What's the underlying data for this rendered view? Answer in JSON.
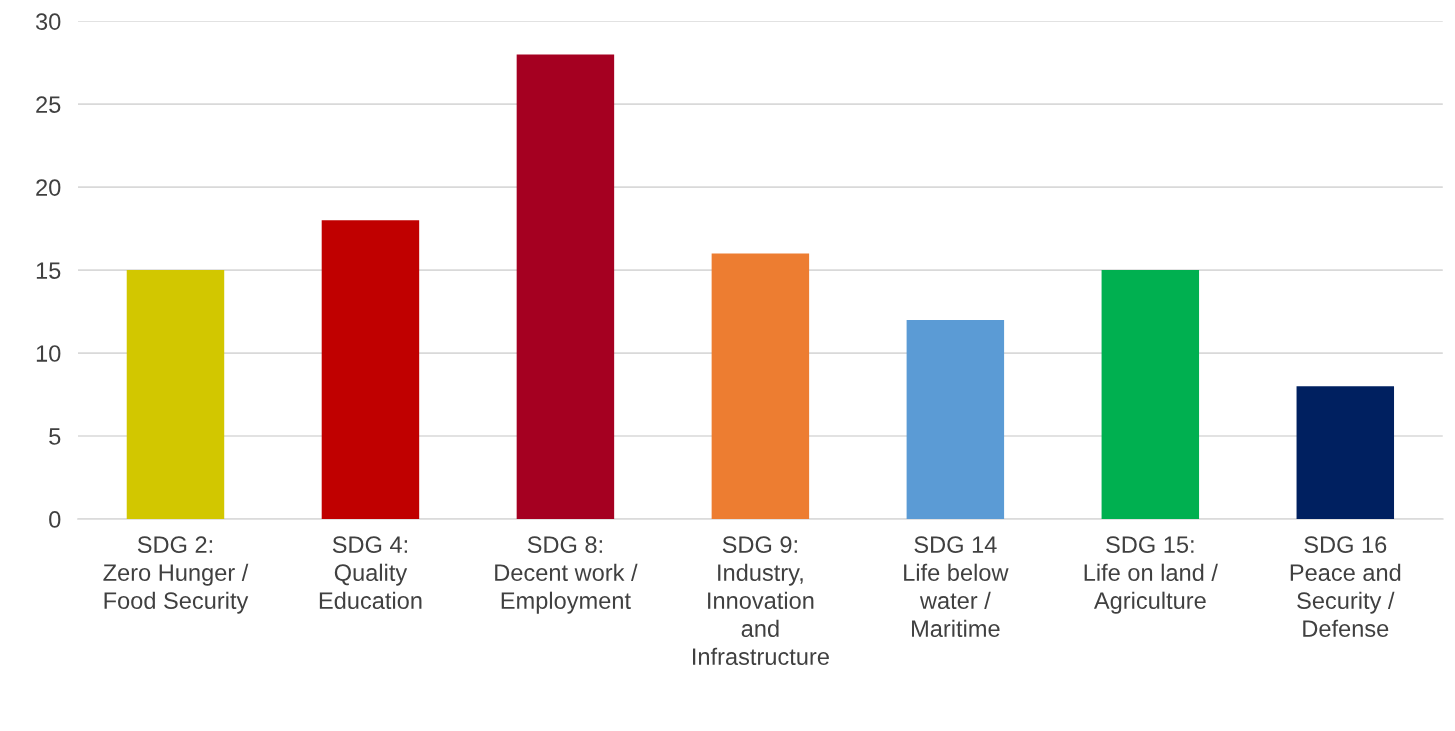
{
  "chart_data": {
    "type": "bar",
    "categories": [
      "SDG 2:\nZero Hunger /\nFood Security",
      "SDG 4:\nQuality\nEducation",
      "SDG 8:\nDecent work /\nEmployment",
      "SDG 9:\nIndustry,\nInnovation\nand\nInfrastructure",
      "SDG 14\nLife below\nwater /\nMaritime",
      "SDG 15:\nLife on land /\nAgriculture",
      "SDG 16\nPeace and\nSecurity /\nDefense"
    ],
    "values": [
      15,
      18,
      28,
      16,
      12,
      15,
      8
    ],
    "colors": [
      "#d2c700",
      "#c00000",
      "#a50021",
      "#ed7d31",
      "#5b9bd5",
      "#00b050",
      "#002060"
    ],
    "ylim": [
      0,
      30
    ],
    "yticks": [
      0,
      5,
      10,
      15,
      20,
      25,
      30
    ],
    "grid": "y",
    "legend": false
  }
}
